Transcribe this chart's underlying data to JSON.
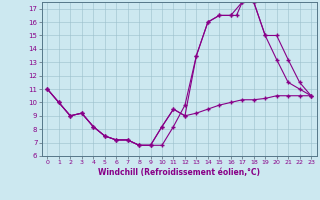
{
  "xlabel": "Windchill (Refroidissement éolien,°C)",
  "bg_color": "#cce8f0",
  "line_color": "#880088",
  "xlim": [
    -0.5,
    23.5
  ],
  "ylim": [
    6,
    17.5
  ],
  "xticks": [
    0,
    1,
    2,
    3,
    4,
    5,
    6,
    7,
    8,
    9,
    10,
    11,
    12,
    13,
    14,
    15,
    16,
    17,
    18,
    19,
    20,
    21,
    22,
    23
  ],
  "yticks": [
    6,
    7,
    8,
    9,
    10,
    11,
    12,
    13,
    14,
    15,
    16,
    17
  ],
  "series1_x": [
    0,
    1,
    2,
    3,
    4,
    5,
    6,
    7,
    8,
    9,
    10,
    11,
    12,
    13,
    14,
    15,
    16,
    17,
    18,
    19,
    20,
    21,
    22,
    23
  ],
  "series1_y": [
    11,
    10,
    9,
    9.2,
    8.2,
    7.5,
    7.2,
    7.2,
    6.8,
    6.8,
    8.2,
    9.5,
    9.0,
    9.2,
    9.5,
    9.8,
    10.0,
    10.2,
    10.2,
    10.3,
    10.5,
    10.5,
    10.5,
    10.5
  ],
  "series2_x": [
    0,
    1,
    2,
    3,
    4,
    5,
    6,
    7,
    8,
    9,
    10,
    11,
    12,
    13,
    14,
    15,
    16,
    16.5,
    17,
    18,
    19,
    20,
    21,
    22,
    23
  ],
  "series2_y": [
    11,
    10,
    9,
    9.2,
    8.2,
    7.5,
    7.2,
    7.2,
    6.8,
    6.8,
    6.8,
    8.2,
    9.8,
    13.5,
    16.0,
    16.5,
    16.5,
    16.5,
    17.5,
    17.5,
    15.0,
    13.2,
    11.5,
    11.0,
    10.5
  ],
  "series3_x": [
    0,
    1,
    2,
    3,
    4,
    5,
    6,
    7,
    8,
    9,
    10,
    11,
    12,
    13,
    14,
    15,
    16,
    17,
    18,
    19,
    20,
    21,
    22,
    23
  ],
  "series3_y": [
    11,
    10,
    9,
    9.2,
    8.2,
    7.5,
    7.2,
    7.2,
    6.8,
    6.8,
    8.2,
    9.5,
    9.0,
    13.5,
    16.0,
    16.5,
    16.5,
    17.5,
    17.5,
    15.0,
    15.0,
    13.2,
    11.5,
    10.5
  ]
}
